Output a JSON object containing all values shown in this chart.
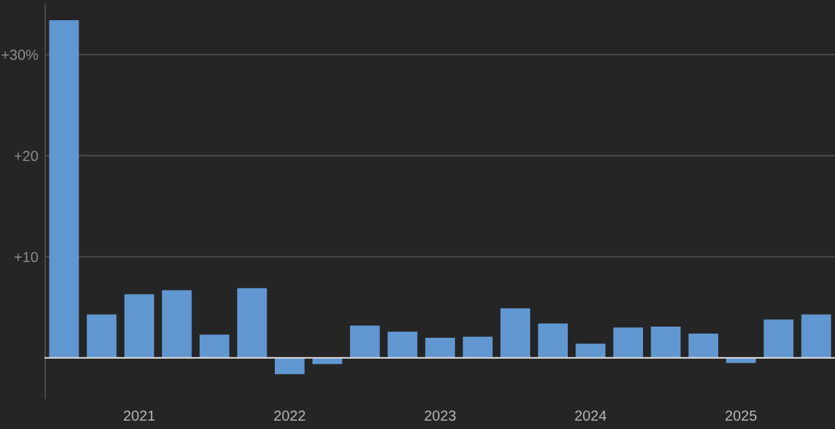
{
  "chart_data": {
    "type": "bar",
    "categories": [
      null,
      null,
      "2021",
      null,
      null,
      null,
      "2022",
      null,
      null,
      null,
      "2023",
      null,
      null,
      null,
      "2024",
      null,
      null,
      null,
      "2025",
      null,
      null
    ],
    "values": [
      33.4,
      4.3,
      6.3,
      6.7,
      2.3,
      6.9,
      -1.6,
      -0.6,
      3.2,
      2.6,
      2.0,
      2.1,
      4.9,
      3.4,
      1.4,
      3.0,
      3.1,
      2.4,
      -0.5,
      3.8,
      4.3
    ],
    "color": "#6197d1",
    "ylim": [
      -4,
      35
    ],
    "yticks": [
      {
        "value": 10,
        "label": "+10"
      },
      {
        "value": 20,
        "label": "+20"
      },
      {
        "value": 30,
        "label": "+30%"
      }
    ],
    "grid": "y"
  }
}
